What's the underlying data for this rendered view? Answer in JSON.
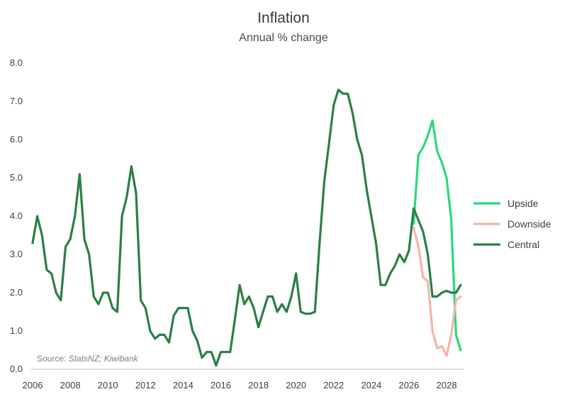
{
  "chart_data": {
    "type": "line",
    "title": "Inflation",
    "subtitle": "Annual % change",
    "source_label": "Source: ",
    "source_text": "StatsNZ; Kiwibank",
    "xlabel": "",
    "ylabel": "",
    "xlim": [
      2006,
      2028.9
    ],
    "ylim": [
      0,
      8
    ],
    "x_ticks": [
      "2006",
      "2008",
      "2010",
      "2012",
      "2014",
      "2016",
      "2018",
      "2020",
      "2022",
      "2024",
      "2026",
      "2028"
    ],
    "y_ticks": [
      "0.0",
      "1.0",
      "2.0",
      "3.0",
      "4.0",
      "5.0",
      "6.0",
      "7.0",
      "8.0"
    ],
    "grid": false,
    "legend_position": "right",
    "series": [
      {
        "name": "Upside",
        "color": "#2bd97a",
        "x": [
          2026.25,
          2026.5,
          2026.75,
          2027.0,
          2027.25,
          2027.5,
          2027.75,
          2028.0,
          2028.25,
          2028.5,
          2028.75
        ],
        "y": [
          3.8,
          5.6,
          5.8,
          6.1,
          6.5,
          5.7,
          5.4,
          5.0,
          3.9,
          0.9,
          0.5
        ]
      },
      {
        "name": "Downside",
        "color": "#f4b5aa",
        "x": [
          2026.25,
          2026.5,
          2026.75,
          2027.0,
          2027.25,
          2027.5,
          2027.75,
          2028.0,
          2028.25,
          2028.5,
          2028.75
        ],
        "y": [
          3.7,
          3.2,
          2.4,
          2.3,
          1.0,
          0.55,
          0.6,
          0.35,
          0.9,
          1.8,
          1.9
        ]
      },
      {
        "name": "Central",
        "color": "#2a7f47",
        "x": [
          2006.0,
          2006.25,
          2006.5,
          2006.75,
          2007.0,
          2007.25,
          2007.5,
          2007.75,
          2008.0,
          2008.25,
          2008.5,
          2008.75,
          2009.0,
          2009.25,
          2009.5,
          2009.75,
          2010.0,
          2010.25,
          2010.5,
          2010.75,
          2011.0,
          2011.25,
          2011.5,
          2011.75,
          2012.0,
          2012.25,
          2012.5,
          2012.75,
          2013.0,
          2013.25,
          2013.5,
          2013.75,
          2014.0,
          2014.25,
          2014.5,
          2014.75,
          2015.0,
          2015.25,
          2015.5,
          2015.75,
          2016.0,
          2016.25,
          2016.5,
          2016.75,
          2017.0,
          2017.25,
          2017.5,
          2017.75,
          2018.0,
          2018.25,
          2018.5,
          2018.75,
          2019.0,
          2019.25,
          2019.5,
          2019.75,
          2020.0,
          2020.25,
          2020.5,
          2020.75,
          2021.0,
          2021.25,
          2021.5,
          2021.75,
          2022.0,
          2022.25,
          2022.5,
          2022.75,
          2023.0,
          2023.25,
          2023.5,
          2023.75,
          2024.0,
          2024.25,
          2024.5,
          2024.75,
          2025.0,
          2025.25,
          2025.5,
          2025.75,
          2026.0,
          2026.25,
          2026.5,
          2026.75,
          2027.0,
          2027.25,
          2027.5,
          2027.75,
          2028.0,
          2028.25,
          2028.5,
          2028.75
        ],
        "y": [
          3.3,
          4.0,
          3.5,
          2.6,
          2.5,
          2.0,
          1.8,
          3.2,
          3.4,
          4.0,
          5.1,
          3.4,
          3.0,
          1.9,
          1.7,
          2.0,
          2.0,
          1.6,
          1.5,
          4.0,
          4.5,
          5.3,
          4.6,
          1.8,
          1.6,
          1.0,
          0.8,
          0.9,
          0.9,
          0.7,
          1.4,
          1.6,
          1.6,
          1.6,
          1.0,
          0.75,
          0.3,
          0.45,
          0.45,
          0.1,
          0.45,
          0.45,
          0.45,
          1.3,
          2.2,
          1.7,
          1.9,
          1.6,
          1.1,
          1.5,
          1.9,
          1.9,
          1.5,
          1.7,
          1.5,
          1.9,
          2.5,
          1.5,
          1.45,
          1.45,
          1.5,
          3.3,
          4.9,
          5.9,
          6.9,
          7.3,
          7.2,
          7.2,
          6.7,
          6.0,
          5.6,
          4.7,
          4.0,
          3.3,
          2.2,
          2.2,
          2.5,
          2.7,
          3.0,
          2.8,
          3.1,
          4.2,
          3.9,
          3.6,
          3.0,
          1.9,
          1.9,
          2.0,
          2.05,
          2.0,
          2.0,
          2.2
        ]
      }
    ]
  }
}
